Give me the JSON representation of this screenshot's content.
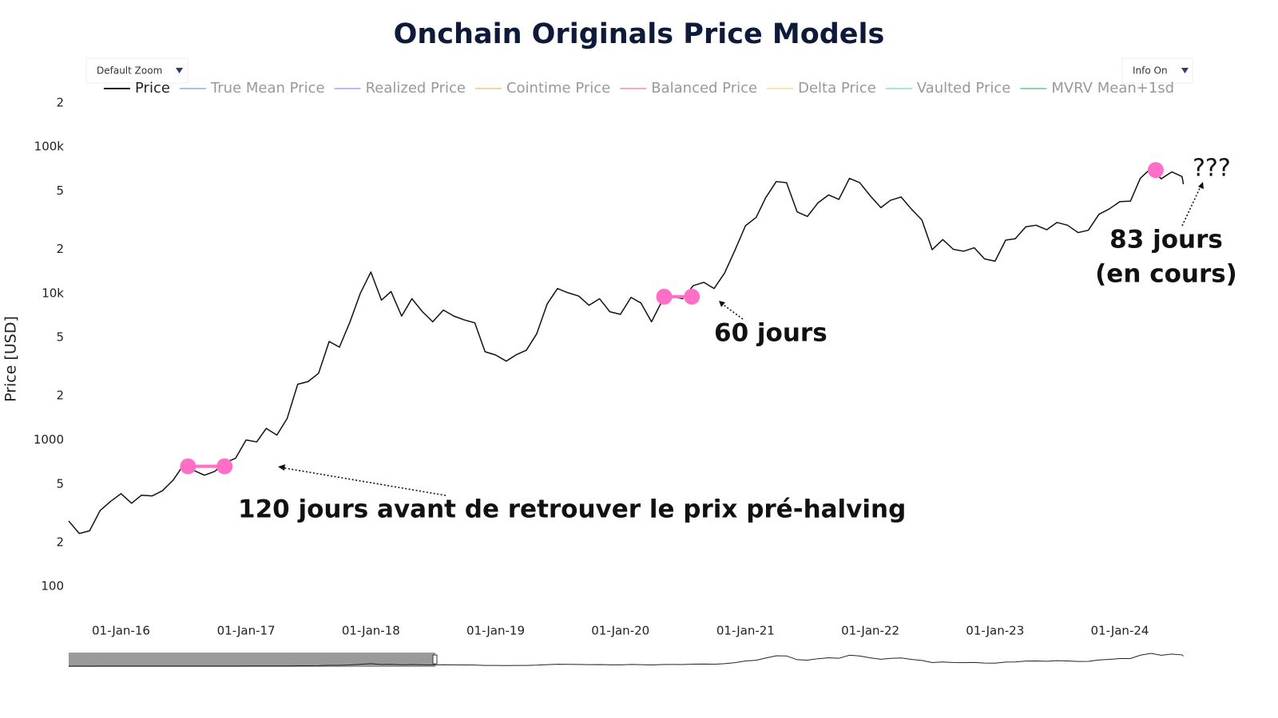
{
  "chart_data": {
    "type": "line",
    "title": "Onchain Originals Price Models",
    "y_label": "Price [USD]",
    "log_y": true,
    "grid": false,
    "legend_position": "top",
    "x": [
      "2015-08-01",
      "2015-09-01",
      "2015-10-01",
      "2015-11-01",
      "2015-12-01",
      "2016-01-01",
      "2016-02-01",
      "2016-03-01",
      "2016-04-01",
      "2016-05-01",
      "2016-06-01",
      "2016-07-01",
      "2016-08-01",
      "2016-09-01",
      "2016-10-01",
      "2016-11-01",
      "2016-12-01",
      "2017-01-01",
      "2017-02-01",
      "2017-03-01",
      "2017-04-01",
      "2017-05-01",
      "2017-06-01",
      "2017-07-01",
      "2017-08-01",
      "2017-09-01",
      "2017-10-01",
      "2017-11-01",
      "2017-12-01",
      "2018-01-01",
      "2018-02-01",
      "2018-03-01",
      "2018-04-01",
      "2018-05-01",
      "2018-06-01",
      "2018-07-01",
      "2018-08-01",
      "2018-09-01",
      "2018-10-01",
      "2018-11-01",
      "2018-12-01",
      "2019-01-01",
      "2019-02-01",
      "2019-03-01",
      "2019-04-01",
      "2019-05-01",
      "2019-06-01",
      "2019-07-01",
      "2019-08-01",
      "2019-09-01",
      "2019-10-01",
      "2019-11-01",
      "2019-12-01",
      "2020-01-01",
      "2020-02-01",
      "2020-03-01",
      "2020-04-01",
      "2020-05-01",
      "2020-06-01",
      "2020-07-01",
      "2020-08-01",
      "2020-09-01",
      "2020-10-01",
      "2020-11-01",
      "2020-12-01",
      "2021-01-01",
      "2021-02-01",
      "2021-03-01",
      "2021-04-01",
      "2021-05-01",
      "2021-06-01",
      "2021-07-01",
      "2021-08-01",
      "2021-09-01",
      "2021-10-01",
      "2021-11-01",
      "2021-12-01",
      "2022-01-01",
      "2022-02-01",
      "2022-03-01",
      "2022-04-01",
      "2022-05-01",
      "2022-06-01",
      "2022-07-01",
      "2022-08-01",
      "2022-09-01",
      "2022-10-01",
      "2022-11-01",
      "2022-12-01",
      "2023-01-01",
      "2023-02-01",
      "2023-03-01",
      "2023-04-01",
      "2023-05-01",
      "2023-06-01",
      "2023-07-01",
      "2023-08-01",
      "2023-09-01",
      "2023-10-01",
      "2023-11-01",
      "2023-12-01",
      "2024-01-01",
      "2024-02-01",
      "2024-03-01",
      "2024-04-01",
      "2024-05-01",
      "2024-06-01",
      "2024-07-01",
      "2024-07-05"
    ],
    "series": [
      {
        "name": "Price",
        "color": "#111111",
        "values": [
          280,
          230,
          240,
          330,
          380,
          430,
          370,
          420,
          415,
          450,
          530,
          670,
          620,
          575,
          610,
          700,
          750,
          1000,
          970,
          1200,
          1080,
          1400,
          2400,
          2500,
          2850,
          4700,
          4300,
          6400,
          10000,
          14000,
          9000,
          10300,
          7000,
          9200,
          7500,
          6400,
          7700,
          7000,
          6600,
          6300,
          4000,
          3800,
          3450,
          3800,
          4100,
          5300,
          8500,
          10800,
          10100,
          9600,
          8300,
          9200,
          7500,
          7200,
          9400,
          8600,
          6400,
          8800,
          9500,
          9200,
          11300,
          11900,
          10800,
          13800,
          19700,
          29000,
          33000,
          45000,
          58000,
          57000,
          36000,
          33500,
          41500,
          47000,
          43800,
          61000,
          57000,
          46300,
          38500,
          43200,
          45500,
          37700,
          31700,
          19900,
          23300,
          20000,
          19400,
          20500,
          17200,
          16600,
          23100,
          23600,
          28500,
          29200,
          27200,
          30500,
          29200,
          26000,
          27000,
          34700,
          37700,
          42300,
          42600,
          61100,
          71300,
          60600,
          67500,
          62700,
          55600
        ]
      }
    ],
    "hidden_series": [
      {
        "name": "True Mean Price",
        "color": "#9ecae1"
      },
      {
        "name": "Realized Price",
        "color": "#c5b8f0"
      },
      {
        "name": "Cointime Price",
        "color": "#fdd0a2"
      },
      {
        "name": "Balanced Price",
        "color": "#f7a8c4"
      },
      {
        "name": "Delta Price",
        "color": "#fde4a8"
      },
      {
        "name": "Vaulted Price",
        "color": "#a8e6d6"
      },
      {
        "name": "MVRV Mean+1sd",
        "color": "#8fd4a8"
      }
    ],
    "xlim": [
      "2015-08-01",
      "2024-07-20"
    ],
    "xticks": [
      {
        "value": "2016-01-01",
        "label": "01-Jan-16"
      },
      {
        "value": "2017-01-01",
        "label": "01-Jan-17"
      },
      {
        "value": "2018-01-01",
        "label": "01-Jan-18"
      },
      {
        "value": "2019-01-01",
        "label": "01-Jan-19"
      },
      {
        "value": "2020-01-01",
        "label": "01-Jan-20"
      },
      {
        "value": "2021-01-01",
        "label": "01-Jan-21"
      },
      {
        "value": "2022-01-01",
        "label": "01-Jan-22"
      },
      {
        "value": "2023-01-01",
        "label": "01-Jan-23"
      },
      {
        "value": "2024-01-01",
        "label": "01-Jan-24"
      }
    ],
    "ylim": [
      80,
      250000
    ],
    "yticks": [
      100,
      {
        "value": 200,
        "label": "2"
      },
      {
        "value": 500,
        "label": "5"
      },
      1000,
      {
        "value": 2000,
        "label": "2"
      },
      {
        "value": 5000,
        "label": "5"
      },
      {
        "value": 10000,
        "label": "10k"
      },
      {
        "value": 20000,
        "label": "2"
      },
      {
        "value": 50000,
        "label": "5"
      },
      {
        "value": 100000,
        "label": "100k"
      },
      {
        "value": 200000,
        "label": "2"
      }
    ],
    "markers": {
      "color": "#ff6ec7",
      "x": [
        "2016-07-15",
        "2016-10-30",
        "2020-05-08",
        "2020-07-28",
        "2024-04-15"
      ],
      "values": [
        661,
        661,
        9500,
        9500,
        69500
      ]
    },
    "annotations": [
      "120 jours avant de retrouver le prix pré-halving",
      "60 jours",
      "83 jours",
      "(en cours)",
      "???"
    ]
  },
  "controls": {
    "zoom_button": "Default Zoom",
    "info_button": "Info On"
  }
}
